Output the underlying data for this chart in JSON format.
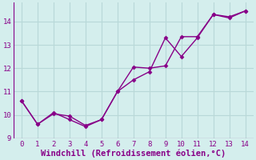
{
  "line1_x": [
    0,
    1,
    2,
    3,
    4,
    5,
    6,
    7,
    8,
    9,
    10,
    11,
    12,
    13,
    14
  ],
  "line1_y": [
    10.6,
    9.6,
    10.1,
    9.8,
    9.5,
    9.8,
    11.0,
    11.5,
    11.85,
    13.3,
    12.5,
    13.3,
    14.3,
    14.2,
    14.45
  ],
  "line2_x": [
    0,
    1,
    2,
    3,
    4,
    5,
    6,
    7,
    8,
    9,
    10,
    11,
    12,
    13,
    14
  ],
  "line2_y": [
    10.6,
    9.6,
    10.05,
    9.95,
    9.55,
    9.8,
    11.0,
    12.05,
    12.0,
    12.1,
    13.35,
    13.35,
    14.3,
    14.15,
    14.45
  ],
  "line_color": "#880088",
  "marker": "D",
  "markersize": 2.5,
  "linewidth": 1.0,
  "xlabel": "Windchill (Refroidissement éolien,°C)",
  "xlim": [
    -0.5,
    14.5
  ],
  "ylim": [
    9.0,
    14.8
  ],
  "xticks": [
    0,
    1,
    2,
    3,
    4,
    5,
    6,
    7,
    8,
    9,
    10,
    11,
    12,
    13,
    14
  ],
  "yticks": [
    9,
    10,
    11,
    12,
    13,
    14
  ],
  "bg_color": "#d4eeed",
  "grid_color": "#b8d8d8",
  "tick_color": "#880088",
  "label_color": "#880088",
  "tick_fontsize": 6.5,
  "xlabel_fontsize": 7.5
}
